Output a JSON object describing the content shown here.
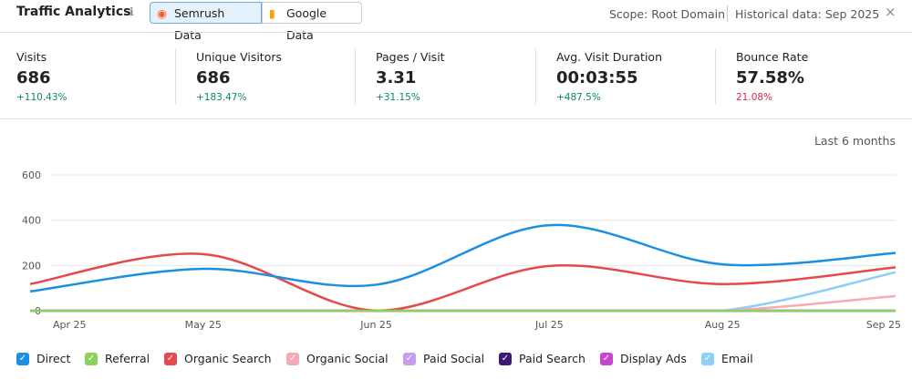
{
  "header": {
    "title": "Traffic Analytics",
    "tabs": [
      "Semrush Data",
      "Google Data"
    ],
    "scope": "Scope: Root Domain",
    "historical": "Historical data: Sep 2025"
  },
  "metrics": [
    {
      "label": "Visits",
      "value": "686",
      "change": "+110.43%"
    },
    {
      "label": "Unique Visitors",
      "value": "686",
      "change": "+183.47%"
    },
    {
      "label": "Pages / Visit",
      "value": "3.31",
      "change": "+31.15%"
    },
    {
      "label": "Avg. Visit Duration",
      "value": "00:03:55",
      "change": "+487.5%"
    },
    {
      "label": "Bounce Rate",
      "value": "57.58%",
      "change": "21.08%"
    }
  ],
  "period": "Last 6 months",
  "chart_data": {
    "type": "line",
    "categories": [
      "Apr 25",
      "May 25",
      "Jun 25",
      "Jul 25",
      "Aug 25",
      "Sep 25"
    ],
    "ylim": [
      0,
      600
    ],
    "yticks": [
      0,
      200,
      400,
      600
    ],
    "grid": true,
    "series": [
      {
        "name": "Direct",
        "color": "#1a8fe3",
        "values": [
          85,
          185,
          115,
          378,
          205,
          255
        ]
      },
      {
        "name": "Referral",
        "color": "#8bd15b",
        "values": [
          0,
          0,
          0,
          0,
          0,
          0
        ]
      },
      {
        "name": "Organic Search",
        "color": "#e5484d",
        "values": [
          118,
          250,
          0,
          198,
          118,
          192
        ]
      },
      {
        "name": "Organic Social",
        "color": "#f7a9b4",
        "values": [
          0,
          0,
          0,
          0,
          0,
          65
        ]
      },
      {
        "name": "Paid Social",
        "color": "#c49cf0",
        "values": [
          0,
          0,
          0,
          0,
          0,
          0
        ]
      },
      {
        "name": "Paid Search",
        "color": "#3d1a78",
        "values": [
          0,
          0,
          0,
          0,
          0,
          0
        ]
      },
      {
        "name": "Display Ads",
        "color": "#c744d1",
        "values": [
          0,
          0,
          0,
          0,
          0,
          0
        ]
      },
      {
        "name": "Email",
        "color": "#8ecff5",
        "values": [
          0,
          0,
          0,
          0,
          0,
          170
        ]
      }
    ]
  }
}
